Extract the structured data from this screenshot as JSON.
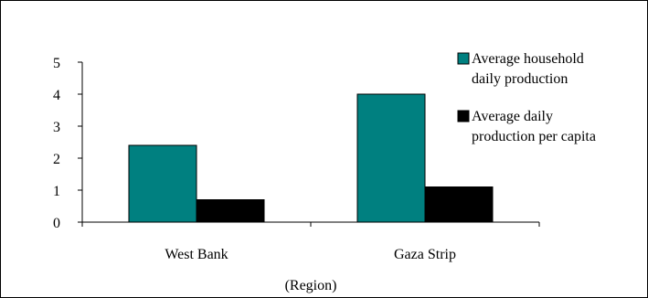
{
  "chart_data": {
    "type": "bar",
    "categories": [
      "West Bank",
      "Gaza Strip"
    ],
    "series": [
      {
        "name": "Average household daily production",
        "values": [
          2.4,
          4.0
        ],
        "color": "#008080"
      },
      {
        "name": "Average daily production per capita",
        "values": [
          0.7,
          1.1
        ],
        "color": "#000000"
      }
    ],
    "xlabel": "(Region)",
    "ylabel": "",
    "ylim": [
      0,
      5
    ],
    "yticks": [
      0,
      1,
      2,
      3,
      4,
      5
    ],
    "grid": false,
    "legend_position": "right"
  }
}
